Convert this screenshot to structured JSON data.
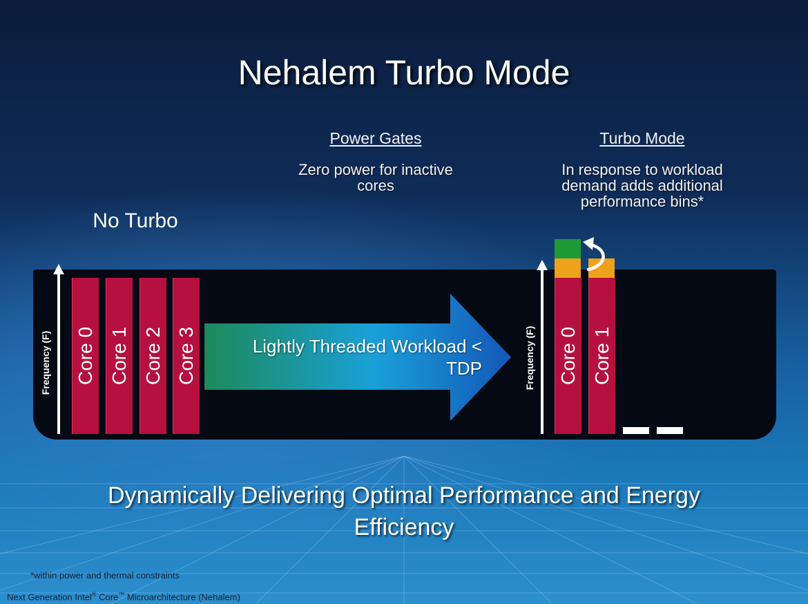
{
  "title": "Nehalem Turbo Mode",
  "power_gates": {
    "heading": "Power Gates",
    "line1": "Zero power for inactive",
    "line2": "cores"
  },
  "turbo_mode": {
    "heading": "Turbo Mode",
    "line1": "In response to workload",
    "line2": "demand adds additional",
    "line3": "performance bins*"
  },
  "no_turbo": {
    "label": "No Turbo",
    "axis_label": "Frequency (F)",
    "cores": [
      "Core 0",
      "Core 1",
      "Core 2",
      "Core 3"
    ]
  },
  "workload": {
    "line1": "Lightly Threaded Workload <",
    "line2": "TDP"
  },
  "turbo": {
    "axis_label": "Frequency (F)",
    "cores": [
      "Core 0",
      "Core 1"
    ]
  },
  "colors": {
    "core": "#b5103f",
    "bin_orange": "#eea21c",
    "bin_green": "#1e9a36",
    "arrow_start": "#1d8a5a",
    "arrow_end": "#1458b8"
  },
  "tagline": {
    "line1": "Dynamically Delivering Optimal Performance and Energy",
    "line2": "Efficiency"
  },
  "footnote": "*within power and thermal constraints",
  "footer": {
    "prefix": "Next Generation Intel",
    "reg": "®",
    "core": " Core",
    "tm": "™",
    "suffix": " Microarchitecture (Nehalem)"
  }
}
